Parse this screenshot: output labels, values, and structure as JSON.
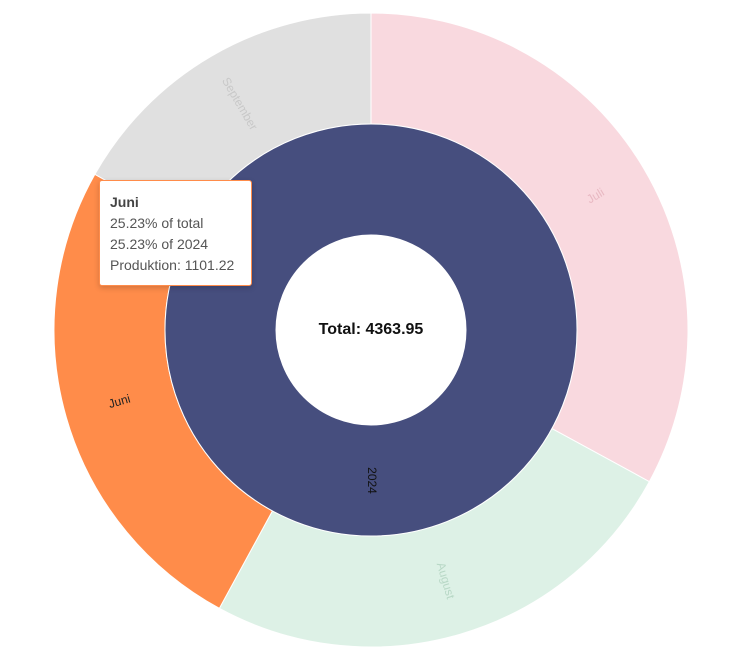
{
  "chart_data": {
    "type": "sunburst",
    "total_label": "Total: 4363.95",
    "inner": [
      {
        "name": "2024",
        "value": 4363.95,
        "color": "#464E7E",
        "label_color": "#111111"
      }
    ],
    "outer": [
      {
        "name": "Juli",
        "value": 1437.42,
        "color": "#F9D9DF",
        "label_color": "#E8B8C2"
      },
      {
        "name": "August",
        "value": 1091.0,
        "color": "#DDF1E6",
        "label_color": "#B8D8C6"
      },
      {
        "name": "Juni",
        "value": 1101.22,
        "color": "#FF8C4A",
        "label_color": "#222222"
      },
      {
        "name": "September",
        "value": 734.31,
        "color": "#E0E0E0",
        "label_color": "#C8C8C8"
      }
    ]
  },
  "tooltip": {
    "title": "Juni",
    "line1": "25.23% of total",
    "line2": "25.23% of 2024",
    "key": "Produktion",
    "value": "1101.22",
    "border_color": "#FF8C4A"
  }
}
